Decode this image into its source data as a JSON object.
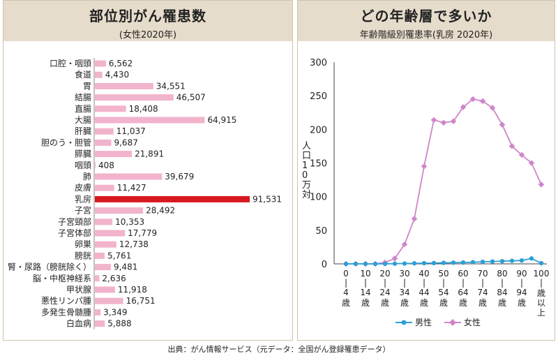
{
  "left": {
    "title": "部位別がん罹患数",
    "subtitle": "(女性2020年)"
  },
  "right": {
    "title": "どの年齢層で多いか",
    "subtitle": "年齢階級別罹患率(乳房 2020年)",
    "ylabel": "人口10万対"
  },
  "source": "出典：がん情報サービス（元データ：全国がん登録罹患データ）",
  "colors": {
    "bar": "#f2b3cc",
    "highlight": "#d7191f",
    "male": "#2e9fd6",
    "female": "#cf86c9"
  },
  "chart_data": [
    {
      "type": "bar",
      "orientation": "horizontal",
      "title": "部位別がん罹患数",
      "subtitle": "(女性2020年)",
      "categories": [
        "口腔・咽頭",
        "食道",
        "胃",
        "結腸",
        "直腸",
        "大腸",
        "肝臓",
        "胆のう・胆管",
        "膵臓",
        "咽頭",
        "肺",
        "皮膚",
        "乳房",
        "子宮",
        "子宮頸部",
        "子宮体部",
        "卵巣",
        "膀胱",
        "腎・尿路（膀胱除く）",
        "脳・中枢神経系",
        "甲状腺",
        "悪性リンパ腫",
        "多発生骨髄腫",
        "白血病"
      ],
      "values": [
        6562,
        4430,
        34551,
        46507,
        18408,
        64915,
        11037,
        9687,
        21891,
        408,
        39679,
        11427,
        91531,
        28492,
        10353,
        17779,
        12738,
        5761,
        9481,
        2636,
        11918,
        16751,
        3349,
        5888
      ],
      "value_labels": [
        "6,562",
        "4,430",
        "34,551",
        "46,507",
        "18,408",
        "64,915",
        "11,037",
        "9,687",
        "21,891",
        "408",
        "39,679",
        "11,427",
        "91,531",
        "28,492",
        "10,353",
        "17,779",
        "12,738",
        "5,761",
        "9,481",
        "2,636",
        "11,918",
        "16,751",
        "3,349",
        "5,888"
      ],
      "highlight": "乳房"
    },
    {
      "type": "line",
      "title": "どの年齢層で多いか",
      "subtitle": "年齢階級別罹患率(乳房 2020年)",
      "ylabel": "人口10万対",
      "ylim": [
        0,
        300
      ],
      "yticks": [
        "0",
        "50",
        "100",
        "150",
        "200",
        "250",
        "300"
      ],
      "x": [
        "0-4",
        "5-9",
        "10-14",
        "15-19",
        "20-24",
        "25-29",
        "30-34",
        "35-39",
        "40-44",
        "45-49",
        "50-54",
        "55-59",
        "60-64",
        "65-69",
        "70-74",
        "75-79",
        "80-84",
        "85-89",
        "90-94",
        "95-99",
        "100-"
      ],
      "xtick_labels": [
        {
          "i": 0,
          "top": "0",
          "mid": "4",
          "bot": "歳"
        },
        {
          "i": 2,
          "top": "10",
          "mid": "14",
          "bot": "歳"
        },
        {
          "i": 4,
          "top": "20",
          "mid": "24",
          "bot": "歳"
        },
        {
          "i": 6,
          "top": "30",
          "mid": "34",
          "bot": "歳"
        },
        {
          "i": 8,
          "top": "40",
          "mid": "44",
          "bot": "歳"
        },
        {
          "i": 10,
          "top": "50",
          "mid": "54",
          "bot": "歳"
        },
        {
          "i": 12,
          "top": "60",
          "mid": "64",
          "bot": "歳"
        },
        {
          "i": 14,
          "top": "70",
          "mid": "74",
          "bot": "歳"
        },
        {
          "i": 16,
          "top": "80",
          "mid": "84",
          "bot": "歳"
        },
        {
          "i": 18,
          "top": "90",
          "mid": "94",
          "bot": "歳"
        },
        {
          "i": 20,
          "top": "100",
          "mid": "歳以上",
          "bot": ""
        }
      ],
      "series": [
        {
          "name": "男性",
          "values": [
            0,
            0,
            0,
            0,
            0,
            0.3,
            0.5,
            0.8,
            1,
            1.2,
            1.5,
            1.8,
            2,
            2.5,
            3,
            3.5,
            4,
            4.5,
            5,
            8,
            1
          ]
        },
        {
          "name": "女性",
          "values": [
            0,
            0,
            0,
            0,
            2,
            8,
            29,
            67,
            145,
            214,
            210,
            212,
            233,
            245,
            242,
            232,
            207,
            175,
            162,
            150,
            118
          ]
        }
      ],
      "legend": "bottom"
    }
  ]
}
